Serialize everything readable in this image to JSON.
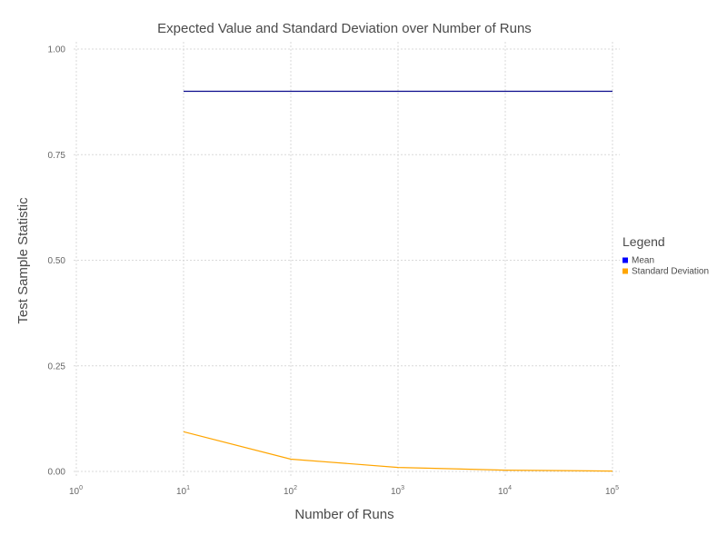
{
  "chart_data": {
    "type": "line",
    "title": "Expected Value and Standard Deviation over Number of Runs",
    "xlabel": "Number of Runs",
    "ylabel": "Test Sample Statistic",
    "x_scale": "log10",
    "xlim": [
      1,
      100000
    ],
    "ylim": [
      0,
      1
    ],
    "x_ticks": [
      {
        "base": "10",
        "exp": "0",
        "value": 1
      },
      {
        "base": "10",
        "exp": "1",
        "value": 10
      },
      {
        "base": "10",
        "exp": "2",
        "value": 100
      },
      {
        "base": "10",
        "exp": "3",
        "value": 1000
      },
      {
        "base": "10",
        "exp": "4",
        "value": 10000
      },
      {
        "base": "10",
        "exp": "5",
        "value": 100000
      }
    ],
    "y_ticks": [
      {
        "label": "0.00",
        "value": 0
      },
      {
        "label": "0.25",
        "value": 0.25
      },
      {
        "label": "0.50",
        "value": 0.5
      },
      {
        "label": "0.75",
        "value": 0.75
      },
      {
        "label": "1.00",
        "value": 1
      }
    ],
    "grid": true,
    "legend": {
      "title": "Legend",
      "position": "right"
    },
    "series": [
      {
        "name": "Mean",
        "color": "#0a0a8c",
        "swatch_color": "#0000ff",
        "x": [
          10,
          100,
          1000,
          10000,
          100000
        ],
        "y": [
          0.9,
          0.9,
          0.9,
          0.9,
          0.9
        ]
      },
      {
        "name": "Standard Deviation",
        "color": "#ffa500",
        "swatch_color": "#ffa500",
        "x": [
          10,
          100,
          1000,
          10000,
          100000
        ],
        "y": [
          0.094,
          0.029,
          0.0095,
          0.003,
          0.0009
        ]
      }
    ]
  }
}
